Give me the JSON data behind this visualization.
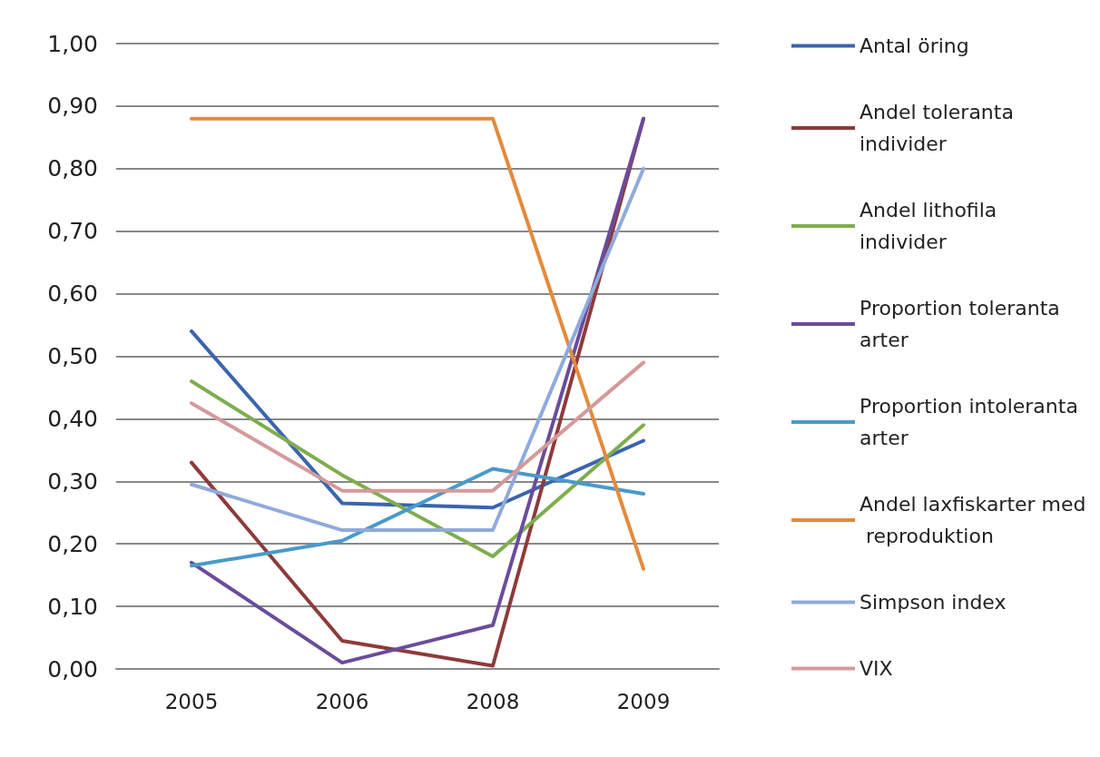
{
  "chart_data": {
    "type": "line",
    "categories": [
      "2005",
      "2006",
      "2008",
      "2009"
    ],
    "series": [
      {
        "name": "Antal öring",
        "color": "#3a64ae",
        "values": [
          0.54,
          0.265,
          0.258,
          0.365
        ]
      },
      {
        "name": "Andel toleranta individer",
        "color": "#8e3a3a",
        "values": [
          0.33,
          0.045,
          0.005,
          0.88
        ]
      },
      {
        "name": "Andel lithofila individer",
        "color": "#7fad4e",
        "values": [
          0.46,
          0.31,
          0.18,
          0.39
        ]
      },
      {
        "name": "Proportion toleranta arter",
        "color": "#6a4c9c",
        "values": [
          0.17,
          0.01,
          0.07,
          0.88
        ]
      },
      {
        "name": "Proportion intoleranta arter",
        "color": "#4a9acb",
        "values": [
          0.165,
          0.205,
          0.32,
          0.28
        ]
      },
      {
        "name": "Andel laxfiskarter med reproduktion",
        "color": "#e38a3c",
        "values": [
          0.88,
          0.88,
          0.88,
          0.16
        ]
      },
      {
        "name": "Simpson index",
        "color": "#8faadc",
        "values": [
          0.295,
          0.222,
          0.222,
          0.8
        ]
      },
      {
        "name": "VIX",
        "color": "#d49a9a",
        "values": [
          0.425,
          0.285,
          0.285,
          0.49
        ]
      }
    ],
    "ylim": [
      0,
      1
    ],
    "yticks": [
      {
        "value": 0,
        "label": "0,00"
      },
      {
        "value": 0.1,
        "label": "0,10"
      },
      {
        "value": 0.2,
        "label": "0,20"
      },
      {
        "value": 0.3,
        "label": "0,30"
      },
      {
        "value": 0.4,
        "label": "0,40"
      },
      {
        "value": 0.5,
        "label": "0,50"
      },
      {
        "value": 0.6,
        "label": "0,60"
      },
      {
        "value": 0.7,
        "label": "0,70"
      },
      {
        "value": 0.8,
        "label": "0,80"
      },
      {
        "value": 0.9,
        "label": "0,90"
      },
      {
        "value": 1,
        "label": "1,00"
      }
    ],
    "grid": "y",
    "legend": "right",
    "marker": "none",
    "line_style": "solid"
  }
}
